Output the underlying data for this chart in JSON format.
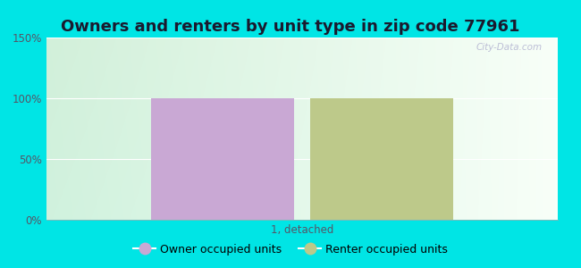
{
  "title": "Owners and renters by unit type in zip code 77961",
  "categories": [
    "1, detached"
  ],
  "owner_values": [
    100
  ],
  "renter_values": [
    100
  ],
  "owner_color": "#c9a8d4",
  "renter_color": "#bdc98a",
  "ylim": [
    0,
    150
  ],
  "yticks": [
    0,
    50,
    100,
    150
  ],
  "ytick_labels": [
    "0%",
    "50%",
    "100%",
    "150%"
  ],
  "owner_label": "Owner occupied units",
  "renter_label": "Renter occupied units",
  "bg_color": "#00e5e5",
  "watermark": "City-Data.com",
  "bar_width": 0.28,
  "title_fontsize": 13,
  "tick_fontsize": 8.5,
  "legend_fontsize": 9
}
